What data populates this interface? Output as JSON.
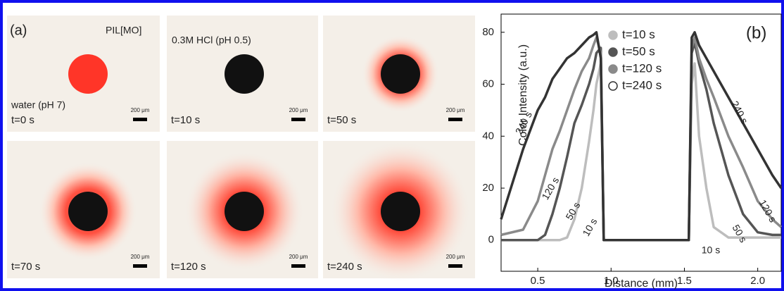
{
  "panel_a": {
    "label": "(a)",
    "annotations": [
      "PIL[MO]",
      "0.3M HCl (pH 0.5)",
      "water (pH 7)"
    ],
    "times": [
      "t=0 s",
      "t=10 s",
      "t=50 s",
      "t=70 s",
      "t=120 s",
      "t=240 s"
    ],
    "scale_bar": "200 μm"
  },
  "chart_data": {
    "type": "line",
    "panel_label": "(b)",
    "x_label": "Distance (mm)",
    "y_label": "Color Intensity (a.u.)",
    "x": [
      0.25,
      0.4,
      0.5,
      0.55,
      0.6,
      0.65,
      0.7,
      0.75,
      0.8,
      0.85,
      0.88,
      0.9,
      0.93,
      0.95,
      1.53,
      1.55,
      1.57,
      1.6,
      1.65,
      1.7,
      1.8,
      1.9,
      2.0,
      2.1,
      2.16
    ],
    "series": [
      {
        "name": "t=10 s",
        "color": "#bdbdbd",
        "marker": "filled",
        "values": [
          0,
          0,
          0,
          0,
          0,
          0,
          1,
          8,
          20,
          38,
          50,
          60,
          68,
          0,
          0,
          60,
          68,
          40,
          20,
          5,
          1,
          1,
          1,
          1,
          1
        ]
      },
      {
        "name": "t=50 s",
        "color": "#555555",
        "marker": "filled",
        "values": [
          0,
          0,
          0,
          2,
          10,
          20,
          32,
          45,
          52,
          60,
          66,
          72,
          74,
          0,
          0,
          72,
          76,
          68,
          58,
          45,
          25,
          10,
          3,
          2,
          2
        ]
      },
      {
        "name": "t=120 s",
        "color": "#8a8a8a",
        "marker": "filled",
        "values": [
          2,
          4,
          15,
          25,
          35,
          42,
          50,
          58,
          65,
          70,
          75,
          78,
          72,
          0,
          0,
          74,
          78,
          70,
          62,
          55,
          40,
          28,
          15,
          8,
          5
        ]
      },
      {
        "name": "t=240 s",
        "color": "#333333",
        "marker": "open",
        "values": [
          8,
          35,
          50,
          55,
          62,
          66,
          70,
          72,
          75,
          78,
          79,
          80,
          70,
          0,
          0,
          78,
          80,
          75,
          70,
          65,
          55,
          45,
          35,
          25,
          20
        ]
      }
    ],
    "annotations": [
      "240 s",
      "120 s",
      "50 s",
      "10 s",
      "240 s",
      "10 s",
      "50 s",
      "120 s"
    ],
    "xlim": [
      0.25,
      2.16
    ],
    "ylim": [
      -12,
      87
    ],
    "xticks": [
      0.5,
      {
        "value": 1,
        "label": "1.0"
      },
      1.5,
      {
        "value": 2,
        "label": "2.0"
      }
    ],
    "yticks": [
      0,
      20,
      40,
      60,
      80
    ]
  }
}
